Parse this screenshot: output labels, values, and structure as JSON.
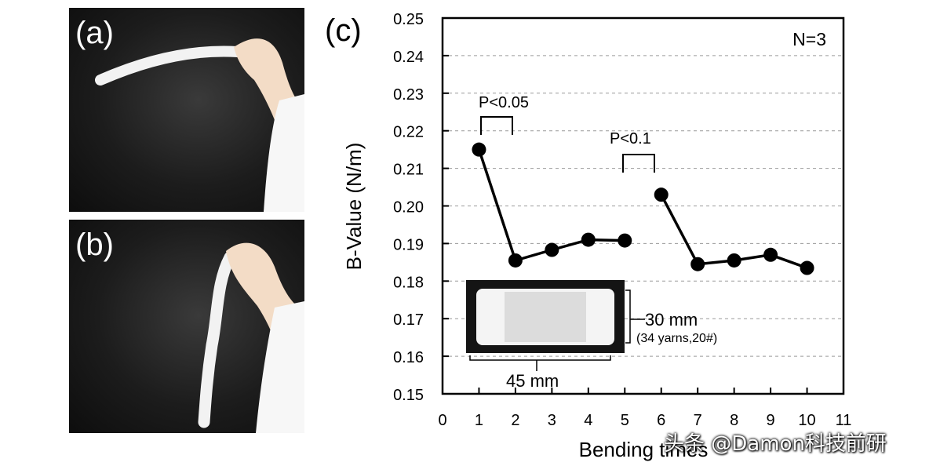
{
  "panels": {
    "a": {
      "label": "(a)"
    },
    "b": {
      "label": "(b)"
    },
    "c": {
      "label": "(c)"
    }
  },
  "chart_data": {
    "type": "line",
    "title": "",
    "xlabel": "Bending times",
    "ylabel": "B-Value (N/m)",
    "xlim": [
      0,
      11
    ],
    "ylim": [
      0.15,
      0.25
    ],
    "xticks": [
      "0",
      "1",
      "2",
      "3",
      "4",
      "5",
      "6",
      "7",
      "8",
      "9",
      "10",
      "11"
    ],
    "yticks": [
      "0.15",
      "0.16",
      "0.17",
      "0.18",
      "0.19",
      "0.20",
      "0.21",
      "0.22",
      "0.23",
      "0.24",
      "0.25"
    ],
    "grid": "horizontal-dashed",
    "series": [
      {
        "name": "segment-1",
        "x": [
          1,
          2,
          3,
          4,
          5
        ],
        "y": [
          0.215,
          0.1855,
          0.1883,
          0.191,
          0.1908
        ]
      },
      {
        "name": "segment-2",
        "x": [
          6,
          7,
          8,
          9,
          10
        ],
        "y": [
          0.203,
          0.1845,
          0.1855,
          0.187,
          0.1835
        ]
      }
    ],
    "annotations": {
      "n_label": "N=3",
      "sig1": {
        "text": "P<0.05",
        "x_from": 1,
        "x_to": 2
      },
      "sig2": {
        "text": "P<0.1",
        "x_from": 5,
        "x_to": 6
      }
    },
    "inset": {
      "height_label": "30 mm",
      "yarn_label": "(34 yarns,20#)",
      "width_label": "45 mm"
    }
  },
  "watermark": "头条 @Damon科技前研",
  "colors": {
    "ink": "#000000",
    "grid": "#9a9a9a",
    "photo_bg": "#1c1c1c"
  }
}
